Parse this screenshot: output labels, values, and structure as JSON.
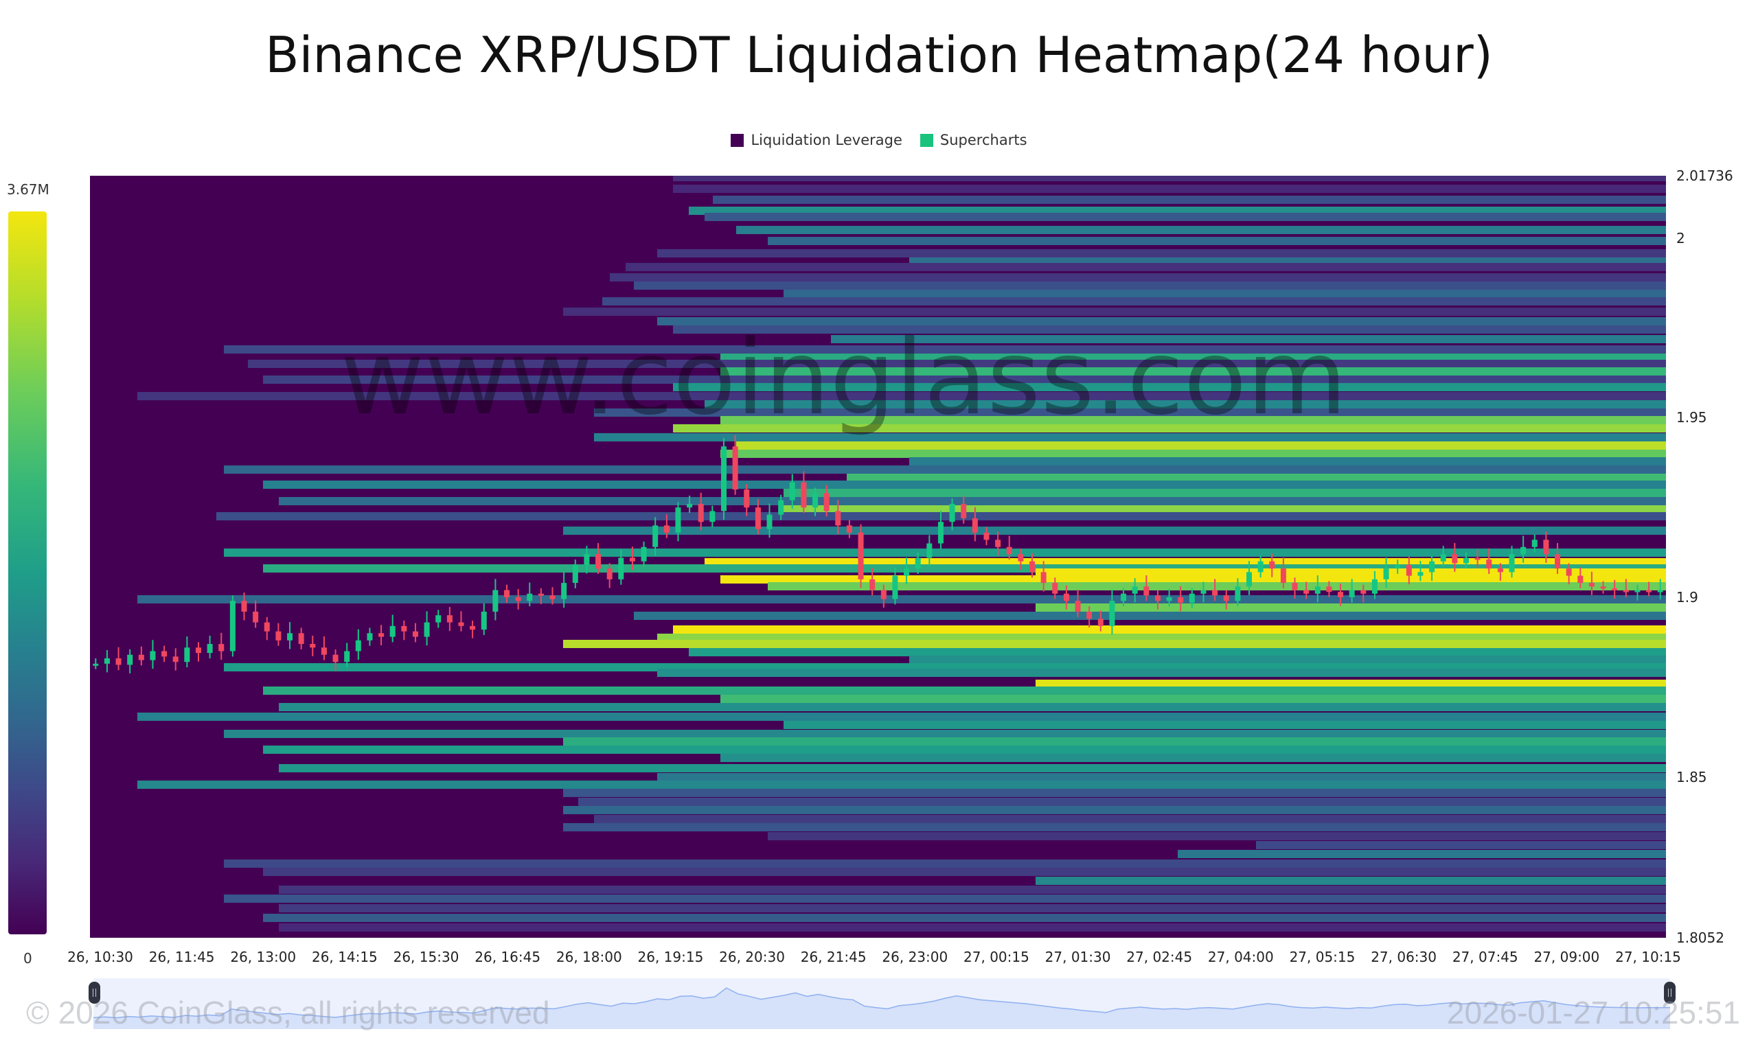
{
  "title": "Binance XRP/USDT Liquidation Heatmap(24 hour)",
  "legend": [
    {
      "label": "Liquidation Leverage",
      "color": "#440154"
    },
    {
      "label": "Supercharts",
      "color": "#19c37d"
    }
  ],
  "colorbar": {
    "max_label": "3.67M",
    "min_label": "0"
  },
  "watermark": "www.coinglass.com",
  "footer": {
    "copyright": "© 2026 CoinGlass, all rights reserved",
    "timestamp": "2026-01-27 10:25:51"
  },
  "chart_data": {
    "type": "heatmap",
    "title": "Binance XRP/USDT Liquidation Heatmap(24 hour)",
    "xlabel": "",
    "ylabel": "",
    "x_ticks": [
      "26, 10:30",
      "26, 11:45",
      "26, 13:00",
      "26, 14:15",
      "26, 15:30",
      "26, 16:45",
      "26, 18:00",
      "26, 19:15",
      "26, 20:30",
      "26, 21:45",
      "26, 23:00",
      "27, 00:15",
      "27, 01:30",
      "27, 02:45",
      "27, 04:00",
      "27, 05:15",
      "27, 06:30",
      "27, 07:45",
      "27, 09:00",
      "27, 10:15"
    ],
    "y_ticks": [
      {
        "label": "2.01736",
        "value": 2.01736
      },
      {
        "label": "2",
        "value": 2.0
      },
      {
        "label": "1.95",
        "value": 1.95
      },
      {
        "label": "1.9",
        "value": 1.9
      },
      {
        "label": "1.85",
        "value": 1.85
      },
      {
        "label": "1.8052",
        "value": 1.8052
      }
    ],
    "ylim": [
      1.8052,
      2.01736
    ],
    "colorscale": {
      "min": 0,
      "max": 3670000,
      "max_label": "3.67M",
      "palette": "viridis"
    },
    "legend": [
      "Liquidation Leverage",
      "Supercharts"
    ],
    "grid": false,
    "bands_note": "Each band: price level, start position as fraction of time axis (band extends to right edge), intensity 0..1 of colorscale",
    "bands": [
      {
        "price": 2.0169,
        "start": 0.37,
        "v": 0.12
      },
      {
        "price": 2.0138,
        "start": 0.37,
        "v": 0.1
      },
      {
        "price": 2.0107,
        "start": 0.395,
        "v": 0.22
      },
      {
        "price": 2.0076,
        "start": 0.38,
        "v": 0.45
      },
      {
        "price": 2.0058,
        "start": 0.39,
        "v": 0.25
      },
      {
        "price": 2.0023,
        "start": 0.41,
        "v": 0.38
      },
      {
        "price": 1.9992,
        "start": 0.43,
        "v": 0.3
      },
      {
        "price": 1.9958,
        "start": 0.36,
        "v": 0.15
      },
      {
        "price": 1.9935,
        "start": 0.52,
        "v": 0.33
      },
      {
        "price": 1.992,
        "start": 0.34,
        "v": 0.12
      },
      {
        "price": 1.989,
        "start": 0.33,
        "v": 0.14
      },
      {
        "price": 1.9868,
        "start": 0.345,
        "v": 0.22
      },
      {
        "price": 1.9845,
        "start": 0.44,
        "v": 0.3
      },
      {
        "price": 1.9823,
        "start": 0.325,
        "v": 0.2
      },
      {
        "price": 1.9795,
        "start": 0.3,
        "v": 0.12
      },
      {
        "price": 1.9768,
        "start": 0.36,
        "v": 0.3
      },
      {
        "price": 1.9745,
        "start": 0.37,
        "v": 0.22
      },
      {
        "price": 1.9718,
        "start": 0.47,
        "v": 0.38
      },
      {
        "price": 1.969,
        "start": 0.085,
        "v": 0.2
      },
      {
        "price": 1.9668,
        "start": 0.4,
        "v": 0.55
      },
      {
        "price": 1.965,
        "start": 0.1,
        "v": 0.15
      },
      {
        "price": 1.9628,
        "start": 0.4,
        "v": 0.6
      },
      {
        "price": 1.9605,
        "start": 0.11,
        "v": 0.18
      },
      {
        "price": 1.9585,
        "start": 0.37,
        "v": 0.48
      },
      {
        "price": 1.956,
        "start": 0.03,
        "v": 0.14
      },
      {
        "price": 1.9538,
        "start": 0.39,
        "v": 0.42
      },
      {
        "price": 1.9515,
        "start": 0.32,
        "v": 0.24
      },
      {
        "price": 1.9493,
        "start": 0.4,
        "v": 0.7
      },
      {
        "price": 1.947,
        "start": 0.37,
        "v": 0.78
      },
      {
        "price": 1.9445,
        "start": 0.32,
        "v": 0.4
      },
      {
        "price": 1.9423,
        "start": 0.41,
        "v": 0.86
      },
      {
        "price": 1.94,
        "start": 0.4,
        "v": 0.68
      },
      {
        "price": 1.9378,
        "start": 0.52,
        "v": 0.38
      },
      {
        "price": 1.9355,
        "start": 0.085,
        "v": 0.3
      },
      {
        "price": 1.9333,
        "start": 0.48,
        "v": 0.62
      },
      {
        "price": 1.9313,
        "start": 0.11,
        "v": 0.4
      },
      {
        "price": 1.929,
        "start": 0.44,
        "v": 0.58
      },
      {
        "price": 1.9268,
        "start": 0.12,
        "v": 0.32
      },
      {
        "price": 1.9245,
        "start": 0.44,
        "v": 0.76
      },
      {
        "price": 1.9225,
        "start": 0.08,
        "v": 0.22
      },
      {
        "price": 1.9185,
        "start": 0.3,
        "v": 0.4
      },
      {
        "price": 1.9125,
        "start": 0.085,
        "v": 0.5
      },
      {
        "price": 1.9098,
        "start": 0.39,
        "v": 1.0
      },
      {
        "price": 1.908,
        "start": 0.11,
        "v": 0.55
      },
      {
        "price": 1.9068,
        "start": 0.6,
        "v": 1.0
      },
      {
        "price": 1.905,
        "start": 0.4,
        "v": 1.0
      },
      {
        "price": 1.903,
        "start": 0.43,
        "v": 0.7
      },
      {
        "price": 1.8995,
        "start": 0.03,
        "v": 0.3
      },
      {
        "price": 1.8972,
        "start": 0.6,
        "v": 0.7
      },
      {
        "price": 1.8948,
        "start": 0.345,
        "v": 0.35
      },
      {
        "price": 1.891,
        "start": 0.37,
        "v": 1.0
      },
      {
        "price": 1.8888,
        "start": 0.36,
        "v": 0.76
      },
      {
        "price": 1.887,
        "start": 0.3,
        "v": 0.85
      },
      {
        "price": 1.8848,
        "start": 0.38,
        "v": 0.5
      },
      {
        "price": 1.8826,
        "start": 0.52,
        "v": 0.45
      },
      {
        "price": 1.8805,
        "start": 0.085,
        "v": 0.5
      },
      {
        "price": 1.879,
        "start": 0.36,
        "v": 0.45
      },
      {
        "price": 1.876,
        "start": 0.6,
        "v": 0.95
      },
      {
        "price": 1.874,
        "start": 0.11,
        "v": 0.55
      },
      {
        "price": 1.8718,
        "start": 0.4,
        "v": 0.62
      },
      {
        "price": 1.8695,
        "start": 0.12,
        "v": 0.45
      },
      {
        "price": 1.8668,
        "start": 0.03,
        "v": 0.4
      },
      {
        "price": 1.8645,
        "start": 0.44,
        "v": 0.48
      },
      {
        "price": 1.862,
        "start": 0.085,
        "v": 0.42
      },
      {
        "price": 1.8598,
        "start": 0.3,
        "v": 0.56
      },
      {
        "price": 1.8575,
        "start": 0.11,
        "v": 0.5
      },
      {
        "price": 1.8552,
        "start": 0.4,
        "v": 0.45
      },
      {
        "price": 1.8525,
        "start": 0.12,
        "v": 0.48
      },
      {
        "price": 1.85,
        "start": 0.36,
        "v": 0.36
      },
      {
        "price": 1.8478,
        "start": 0.03,
        "v": 0.42
      },
      {
        "price": 1.8455,
        "start": 0.3,
        "v": 0.24
      },
      {
        "price": 1.843,
        "start": 0.31,
        "v": 0.2
      },
      {
        "price": 1.8408,
        "start": 0.3,
        "v": 0.3
      },
      {
        "price": 1.8383,
        "start": 0.32,
        "v": 0.16
      },
      {
        "price": 1.836,
        "start": 0.3,
        "v": 0.24
      },
      {
        "price": 1.8335,
        "start": 0.43,
        "v": 0.14
      },
      {
        "price": 1.831,
        "start": 0.74,
        "v": 0.2
      },
      {
        "price": 1.8285,
        "start": 0.69,
        "v": 0.36
      },
      {
        "price": 1.8258,
        "start": 0.085,
        "v": 0.2
      },
      {
        "price": 1.8235,
        "start": 0.11,
        "v": 0.16
      },
      {
        "price": 1.821,
        "start": 0.6,
        "v": 0.42
      },
      {
        "price": 1.8185,
        "start": 0.12,
        "v": 0.14
      },
      {
        "price": 1.816,
        "start": 0.085,
        "v": 0.24
      },
      {
        "price": 1.8135,
        "start": 0.12,
        "v": 0.16
      },
      {
        "price": 1.8108,
        "start": 0.11,
        "v": 0.26
      },
      {
        "price": 1.808,
        "start": 0.12,
        "v": 0.1
      }
    ],
    "price_series_note": "Approximate XRP close prices across the 24h window (evenly spaced)",
    "price_series": [
      1.8815,
      1.883,
      1.8812,
      1.884,
      1.8825,
      1.885,
      1.8835,
      1.882,
      1.886,
      1.8845,
      1.887,
      1.885,
      1.899,
      1.896,
      1.893,
      1.8905,
      1.888,
      1.89,
      1.887,
      1.886,
      1.884,
      1.882,
      1.885,
      1.888,
      1.89,
      1.889,
      1.892,
      1.8905,
      1.889,
      1.893,
      1.895,
      1.893,
      1.892,
      1.891,
      1.896,
      1.902,
      1.9,
      1.899,
      1.901,
      1.9005,
      1.8995,
      1.904,
      1.909,
      1.912,
      1.908,
      1.905,
      1.911,
      1.91,
      1.914,
      1.92,
      1.918,
      1.925,
      1.926,
      1.921,
      1.924,
      1.942,
      1.93,
      1.925,
      1.919,
      1.923,
      1.927,
      1.932,
      1.925,
      1.929,
      1.924,
      1.92,
      1.918,
      1.905,
      1.902,
      1.8995,
      1.906,
      1.908,
      1.911,
      1.915,
      1.921,
      1.926,
      1.922,
      1.918,
      1.916,
      1.914,
      1.912,
      1.91,
      1.907,
      1.904,
      1.901,
      1.899,
      1.896,
      1.894,
      1.892,
      1.899,
      1.901,
      1.903,
      1.9005,
      1.899,
      1.9,
      1.8985,
      1.901,
      1.902,
      1.9005,
      1.899,
      1.903,
      1.907,
      1.91,
      1.908,
      1.904,
      1.902,
      1.901,
      1.903,
      1.9015,
      1.9,
      1.902,
      1.901,
      1.905,
      1.908,
      1.909,
      1.906,
      1.907,
      1.91,
      1.912,
      1.9095,
      1.911,
      1.9105,
      1.908,
      1.907,
      1.912,
      1.914,
      1.916,
      1.912,
      1.908,
      1.906,
      1.904,
      1.903,
      1.9025,
      1.902,
      1.9015,
      1.902,
      1.9018,
      1.902
    ]
  }
}
